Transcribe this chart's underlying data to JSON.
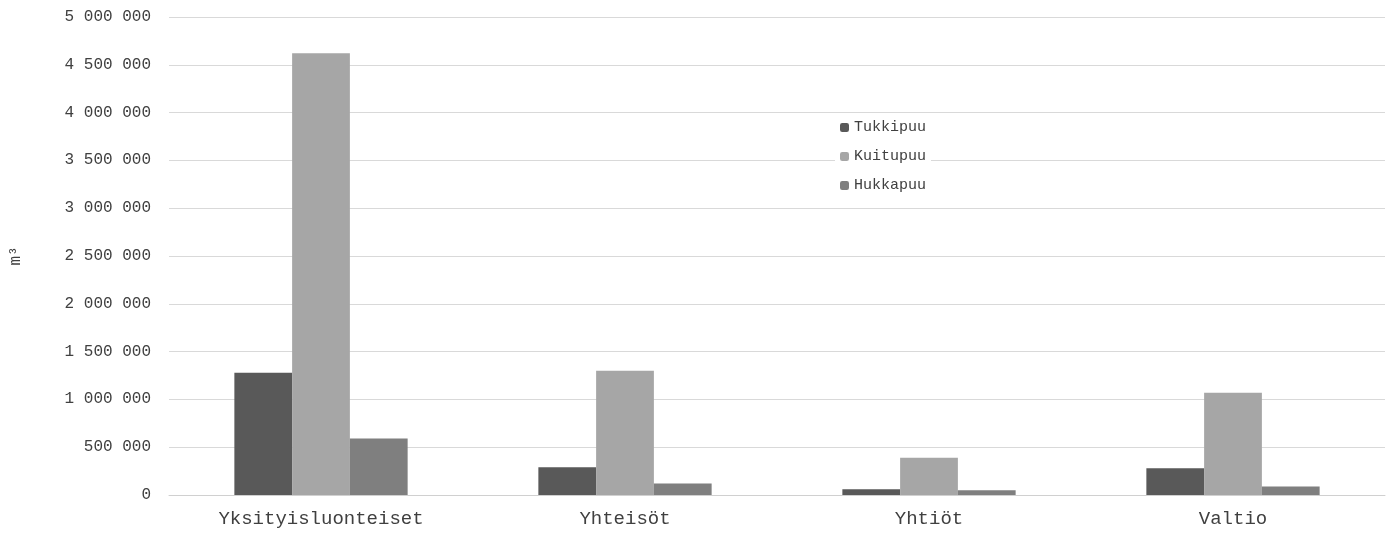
{
  "chart_data": {
    "type": "bar",
    "ylabel": "m³",
    "categories": [
      "Yksityisluonteiset",
      "Yhteisöt",
      "Yhtiöt",
      "Valtio"
    ],
    "series": [
      {
        "name": "Tukkipuu",
        "color": "#595959",
        "values": [
          1280000,
          290000,
          60000,
          280000
        ]
      },
      {
        "name": "Kuitupuu",
        "color": "#a6a6a6",
        "values": [
          4620000,
          1300000,
          390000,
          1070000
        ]
      },
      {
        "name": "Hukkapuu",
        "color": "#7f7f7f",
        "values": [
          590000,
          120000,
          50000,
          90000
        ]
      }
    ],
    "ylim": [
      0,
      5000000
    ],
    "yticks": [
      {
        "value": 0,
        "label": "0"
      },
      {
        "value": 500000,
        "label": "500 000"
      },
      {
        "value": 1000000,
        "label": "1 000 000"
      },
      {
        "value": 1500000,
        "label": "1 500 000"
      },
      {
        "value": 2000000,
        "label": "2 000 000"
      },
      {
        "value": 2500000,
        "label": "2 500 000"
      },
      {
        "value": 3000000,
        "label": "3 000 000"
      },
      {
        "value": 3500000,
        "label": "3 500 000"
      },
      {
        "value": 4000000,
        "label": "4 000 000"
      },
      {
        "value": 4500000,
        "label": "4 500 000"
      },
      {
        "value": 5000000,
        "label": "5 000 000"
      }
    ],
    "grid": "y",
    "legend": "top"
  }
}
